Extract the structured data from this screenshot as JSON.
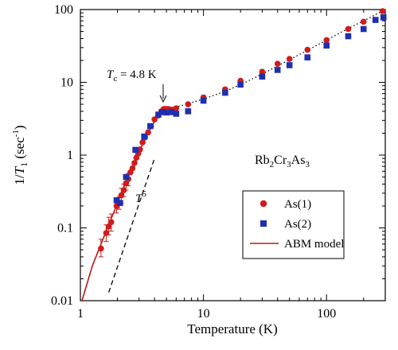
{
  "chart_data": {
    "type": "scatter",
    "title": "",
    "xlabel": "Temperature (K)",
    "ylabel": "1/T1 (sec-1)",
    "ylabel_parts": [
      "1/",
      "T",
      "1",
      " (sec",
      "-1",
      ")"
    ],
    "x_scale": "log",
    "y_scale": "log",
    "xlim": [
      1,
      300
    ],
    "ylim": [
      0.01,
      100
    ],
    "x_ticks": [
      {
        "value": 1,
        "label": "1"
      },
      {
        "value": 10,
        "label": "10"
      },
      {
        "value": 100,
        "label": "100"
      }
    ],
    "y_ticks": [
      {
        "value": 0.01,
        "label": "0.01"
      },
      {
        "value": 0.1,
        "label": "0.1"
      },
      {
        "value": 1,
        "label": "1"
      },
      {
        "value": 10,
        "label": "10"
      },
      {
        "value": 100,
        "label": "100"
      }
    ],
    "grid": false,
    "legend_position": "right",
    "compound_label": {
      "parts": [
        "Rb",
        "2",
        "Cr",
        "3",
        "As",
        "3"
      ]
    },
    "annotations": {
      "tc": {
        "parts": [
          "T",
          "c",
          " = 4.8 K"
        ],
        "x": 4.8,
        "y": 4.5
      },
      "t5": {
        "parts": [
          "T",
          "5"
        ]
      }
    },
    "colors": {
      "as1": "#d01c1c",
      "as2": "#1f2fb0",
      "model": "#b81818",
      "fit": "#000000"
    },
    "series": [
      {
        "name": "As(1)",
        "marker": "circle",
        "color": "#d01c1c",
        "points": [
          {
            "x": 1.47,
            "y": 0.052,
            "ylo": 0.04,
            "yhi": 0.07
          },
          {
            "x": 1.62,
            "y": 0.085,
            "ylo": 0.065,
            "yhi": 0.11
          },
          {
            "x": 1.7,
            "y": 0.105,
            "ylo": 0.08,
            "yhi": 0.14
          },
          {
            "x": 1.78,
            "y": 0.12,
            "ylo": 0.09,
            "yhi": 0.155
          },
          {
            "x": 1.97,
            "y": 0.2,
            "ylo": 0.16,
            "yhi": 0.25
          },
          {
            "x": 2.07,
            "y": 0.22,
            "ylo": 0.18,
            "yhi": 0.27
          },
          {
            "x": 2.15,
            "y": 0.28,
            "ylo": 0.22,
            "yhi": 0.35
          },
          {
            "x": 2.25,
            "y": 0.33,
            "ylo": 0.27,
            "yhi": 0.4
          },
          {
            "x": 2.35,
            "y": 0.41,
            "ylo": 0.33,
            "yhi": 0.5
          },
          {
            "x": 2.45,
            "y": 0.47,
            "ylo": 0.38,
            "yhi": 0.56
          },
          {
            "x": 2.55,
            "y": 0.58
          },
          {
            "x": 2.65,
            "y": 0.66
          },
          {
            "x": 2.75,
            "y": 0.78
          },
          {
            "x": 2.85,
            "y": 0.92
          },
          {
            "x": 2.95,
            "y": 1.05
          },
          {
            "x": 3.05,
            "y": 1.2
          },
          {
            "x": 3.2,
            "y": 1.5
          },
          {
            "x": 3.35,
            "y": 1.75
          },
          {
            "x": 3.55,
            "y": 2.05
          },
          {
            "x": 3.75,
            "y": 2.5
          },
          {
            "x": 4.0,
            "y": 3.1
          },
          {
            "x": 4.3,
            "y": 3.5
          },
          {
            "x": 4.55,
            "y": 4.0
          },
          {
            "x": 4.75,
            "y": 4.3
          },
          {
            "x": 4.9,
            "y": 4.3
          },
          {
            "x": 5.05,
            "y": 4.3
          },
          {
            "x": 5.2,
            "y": 4.3
          },
          {
            "x": 5.4,
            "y": 4.2
          },
          {
            "x": 5.6,
            "y": 4.2
          },
          {
            "x": 6.0,
            "y": 4.4
          },
          {
            "x": 7.5,
            "y": 5.0
          },
          {
            "x": 10.0,
            "y": 6.2
          },
          {
            "x": 15.0,
            "y": 8.0
          },
          {
            "x": 20.0,
            "y": 10.5
          },
          {
            "x": 30.0,
            "y": 14.0
          },
          {
            "x": 40.0,
            "y": 18.0
          },
          {
            "x": 50.0,
            "y": 21.0
          },
          {
            "x": 70.0,
            "y": 28.0
          },
          {
            "x": 100.0,
            "y": 38.0
          },
          {
            "x": 150.0,
            "y": 54.0
          },
          {
            "x": 200.0,
            "y": 68.0
          },
          {
            "x": 285.0,
            "y": 95.0
          }
        ]
      },
      {
        "name": "As(2)",
        "marker": "square",
        "color": "#1f2fb0",
        "points": [
          {
            "x": 1.97,
            "y": 0.24
          },
          {
            "x": 2.1,
            "y": 0.22
          },
          {
            "x": 2.35,
            "y": 0.5
          },
          {
            "x": 2.8,
            "y": 1.18
          },
          {
            "x": 3.3,
            "y": 1.8
          },
          {
            "x": 3.7,
            "y": 2.5
          },
          {
            "x": 4.3,
            "y": 3.6
          },
          {
            "x": 4.6,
            "y": 3.9
          },
          {
            "x": 5.0,
            "y": 3.85
          },
          {
            "x": 5.5,
            "y": 3.9
          },
          {
            "x": 6.0,
            "y": 3.7
          },
          {
            "x": 7.5,
            "y": 4.0
          },
          {
            "x": 10.0,
            "y": 5.6
          },
          {
            "x": 15.0,
            "y": 7.2
          },
          {
            "x": 20.0,
            "y": 9.3
          },
          {
            "x": 30.0,
            "y": 12.0
          },
          {
            "x": 40.0,
            "y": 14.8
          },
          {
            "x": 50.0,
            "y": 17.2
          },
          {
            "x": 70.0,
            "y": 22.0
          },
          {
            "x": 100.0,
            "y": 32.0
          },
          {
            "x": 150.0,
            "y": 43.0
          },
          {
            "x": 200.0,
            "y": 54.0
          },
          {
            "x": 250.0,
            "y": 72.0
          },
          {
            "x": 290.0,
            "y": 78.0
          }
        ]
      },
      {
        "name": "ABM model",
        "line": "solid",
        "color": "#b81818",
        "points": [
          {
            "x": 1.03,
            "y": 0.01
          },
          {
            "x": 1.25,
            "y": 0.03
          },
          {
            "x": 1.5,
            "y": 0.065
          },
          {
            "x": 1.8,
            "y": 0.14
          },
          {
            "x": 2.1,
            "y": 0.27
          },
          {
            "x": 2.4,
            "y": 0.47
          },
          {
            "x": 2.8,
            "y": 0.85
          },
          {
            "x": 3.2,
            "y": 1.4
          },
          {
            "x": 3.6,
            "y": 2.1
          },
          {
            "x": 4.0,
            "y": 2.9
          },
          {
            "x": 4.4,
            "y": 3.7
          },
          {
            "x": 4.8,
            "y": 4.3
          }
        ]
      },
      {
        "line": "dotted",
        "color": "#000000",
        "points": [
          {
            "x": 4.8,
            "y": 4.3
          },
          {
            "x": 6.0,
            "y": 4.6
          },
          {
            "x": 7.0,
            "y": 4.9
          },
          {
            "x": 10.0,
            "y": 5.9
          },
          {
            "x": 15.0,
            "y": 7.5
          },
          {
            "x": 20.0,
            "y": 9.3
          },
          {
            "x": 30.0,
            "y": 13.0
          },
          {
            "x": 50.0,
            "y": 20.5
          },
          {
            "x": 70.0,
            "y": 27.5
          },
          {
            "x": 100.0,
            "y": 38.0
          },
          {
            "x": 150.0,
            "y": 55.0
          },
          {
            "x": 200.0,
            "y": 70.0
          },
          {
            "x": 290.0,
            "y": 97.0
          }
        ]
      },
      {
        "line": "dashed",
        "color": "#000000",
        "points": [
          {
            "x": 1.7,
            "y": 0.013
          },
          {
            "x": 4.0,
            "y": 0.9
          }
        ]
      }
    ]
  }
}
